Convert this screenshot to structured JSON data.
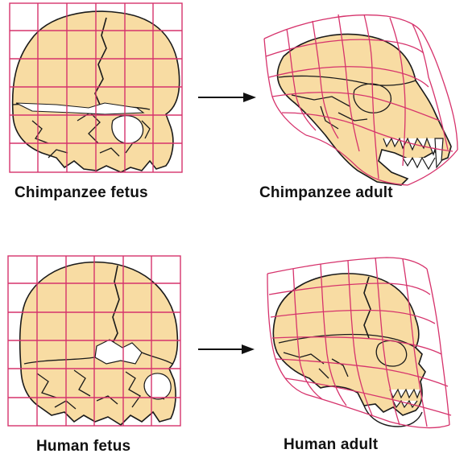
{
  "figure": {
    "captions": {
      "chimp_fetus": "Chimpanzee fetus",
      "chimp_adult": "Chimpanzee adult",
      "human_fetus": "Human fetus",
      "human_adult": "Human adult"
    },
    "colors": {
      "bone": "#f8dca3",
      "outline": "#1a1a1a",
      "grid": "#d6336c",
      "arrow": "#111111",
      "background": "#ffffff"
    }
  }
}
